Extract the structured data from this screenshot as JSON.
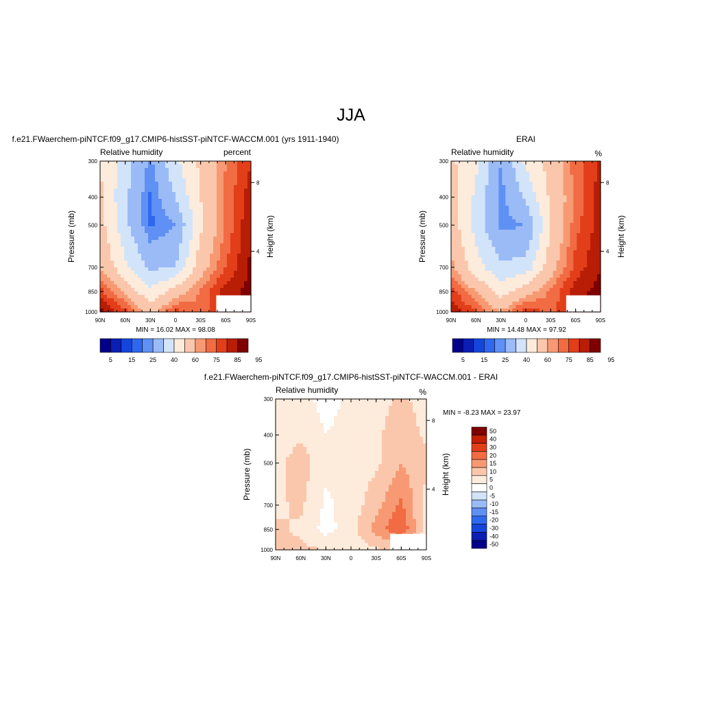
{
  "figure": {
    "title": "JJA"
  },
  "colors": {
    "abs_scale": [
      "#00008b",
      "#0a1eb4",
      "#1446dc",
      "#2f68f0",
      "#5f90f3",
      "#9bbbf7",
      "#d2e4fa",
      "#fdebdc",
      "#fbc7ac",
      "#f79a73",
      "#f16b43",
      "#e23e1a",
      "#b81d05",
      "#7e0000"
    ],
    "diff_scale": [
      "#00008b",
      "#0a1eb4",
      "#1446dc",
      "#2f68f0",
      "#5f90f3",
      "#9bbbf7",
      "#d2e4fa",
      "#ffffff",
      "#fdebdc",
      "#fbc7ac",
      "#f79a73",
      "#f16b43",
      "#e23e1a",
      "#c21f03",
      "#7e0000"
    ]
  },
  "chart_data": [
    {
      "type": "heatmap",
      "name": "model",
      "title": "f.e21.FWaerchem-piNTCF.f09_g17.CMIP6-histSST-piNTCF-WACCM.001 (yrs 1911-1940)",
      "subtitle_left": "Relative humidity",
      "subtitle_right": "percent",
      "ylabel": "Pressure (mb)",
      "ylabel_right": "Height (km)",
      "xticks": [
        "90N",
        "60N",
        "30N",
        "0",
        "30S",
        "60S",
        "90S"
      ],
      "yticks": [
        300,
        400,
        500,
        700,
        850,
        1000
      ],
      "yticks_right": [
        "8",
        "4"
      ],
      "ylim": [
        1000,
        300
      ],
      "stats": "MIN =  16.02  MAX =  98.08",
      "min": 16.02,
      "max": 98.08,
      "colorbar_labels": [
        "5",
        "15",
        "25",
        "40",
        "60",
        "75",
        "85",
        "95"
      ],
      "levels": [
        "5",
        "10",
        "15",
        "20",
        "25",
        "30",
        "40",
        "50",
        "60",
        "70",
        "75",
        "80",
        "85",
        "90",
        "95"
      ],
      "latitudes": [
        90,
        60,
        30,
        0,
        -30,
        -60,
        -90
      ],
      "pressure_levels": [
        300,
        400,
        500,
        700,
        850,
        1000
      ],
      "values": [
        [
          60,
          45,
          28,
          48,
          62,
          75,
          85
        ],
        [
          62,
          42,
          24,
          40,
          60,
          76,
          88
        ],
        [
          64,
          43,
          24,
          30,
          58,
          76,
          90
        ],
        [
          70,
          52,
          38,
          40,
          66,
          80,
          91
        ],
        [
          82,
          68,
          52,
          65,
          76,
          88,
          92
        ],
        [
          92,
          82,
          66,
          82,
          76,
          86,
          90
        ]
      ],
      "fill_color_index": 8
    },
    {
      "type": "heatmap",
      "name": "obs",
      "title": "ERAI",
      "subtitle_left": "Relative humidity",
      "subtitle_right": "%",
      "ylabel": "Pressure (mb)",
      "ylabel_right": "Height (km)",
      "xticks": [
        "90N",
        "60N",
        "30N",
        "0",
        "30S",
        "60S",
        "90S"
      ],
      "yticks": [
        300,
        400,
        500,
        700,
        850,
        1000
      ],
      "yticks_right": [
        "8",
        "4"
      ],
      "ylim": [
        1000,
        300
      ],
      "stats": "MIN =  14.48  MAX =  97.92",
      "min": 14.48,
      "max": 97.92,
      "colorbar_labels": [
        "5",
        "15",
        "25",
        "40",
        "60",
        "75",
        "85",
        "95"
      ],
      "levels": [
        "5",
        "10",
        "15",
        "20",
        "25",
        "30",
        "40",
        "50",
        "60",
        "70",
        "75",
        "80",
        "85",
        "90",
        "95"
      ],
      "latitudes": [
        90,
        60,
        30,
        0,
        -30,
        -60,
        -90
      ],
      "pressure_levels": [
        300,
        400,
        500,
        700,
        850,
        1000
      ],
      "values": [
        [
          62,
          52,
          30,
          52,
          64,
          78,
          86
        ],
        [
          64,
          48,
          27,
          42,
          62,
          76,
          88
        ],
        [
          66,
          46,
          28,
          30,
          60,
          78,
          88
        ],
        [
          72,
          54,
          42,
          44,
          66,
          82,
          90
        ],
        [
          82,
          70,
          56,
          66,
          76,
          88,
          92
        ],
        [
          90,
          80,
          70,
          84,
          78,
          86,
          94
        ]
      ]
    },
    {
      "type": "heatmap",
      "name": "difference",
      "title": "f.e21.FWaerchem-piNTCF.f09_g17.CMIP6-histSST-piNTCF-WACCM.001 - ERAI",
      "subtitle_left": "Relative humidity",
      "subtitle_right": "%",
      "ylabel": "Pressure (mb)",
      "ylabel_right": "Height (km)",
      "xticks": [
        "90N",
        "60N",
        "30N",
        "0",
        "30S",
        "60S",
        "90S"
      ],
      "yticks": [
        300,
        400,
        500,
        700,
        850,
        1000
      ],
      "yticks_right": [
        "8",
        "4"
      ],
      "ylim": [
        1000,
        300
      ],
      "stats": "MIN =  -8.23  MAX =  23.97",
      "min": -8.23,
      "max": 23.97,
      "colorbar_labels": [
        "50",
        "40",
        "30",
        "20",
        "15",
        "10",
        "5",
        "0",
        "-5",
        "-10",
        "-15",
        "-20",
        "-30",
        "-40",
        "-50"
      ],
      "latitudes": [
        90,
        60,
        30,
        0,
        -30,
        -60,
        -90
      ],
      "pressure_levels": [
        300,
        400,
        500,
        700,
        850,
        1000
      ],
      "values": [
        [
          1,
          2,
          -2,
          1,
          3,
          6,
          3
        ],
        [
          2,
          4,
          0,
          2,
          4,
          8,
          4
        ],
        [
          3,
          8,
          1,
          3,
          4,
          10,
          6
        ],
        [
          4,
          6,
          -1,
          2,
          8,
          16,
          3
        ],
        [
          6,
          4,
          -2,
          3,
          12,
          20,
          2
        ],
        [
          8,
          6,
          5,
          2,
          4,
          6,
          2
        ]
      ],
      "fill_color_index": 8
    }
  ]
}
